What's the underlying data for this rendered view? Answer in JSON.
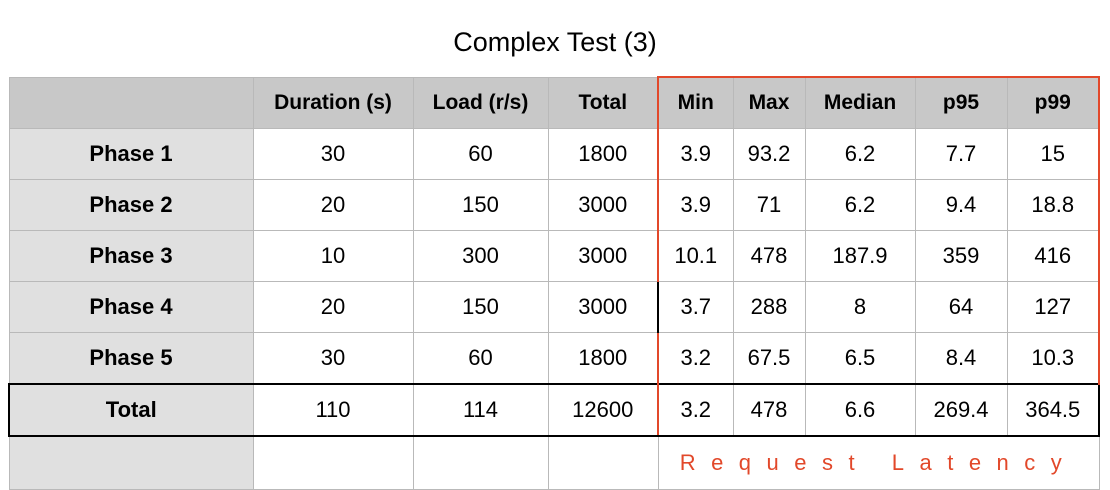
{
  "title": "Complex Test (3)",
  "table": {
    "headers": [
      "",
      "Duration (s)",
      "Load (r/s)",
      "Total",
      "Min",
      "Max",
      "Median",
      "p95",
      "p99"
    ],
    "rows": [
      [
        "Phase 1",
        "30",
        "60",
        "1800",
        "3.9",
        "93.2",
        "6.2",
        "7.7",
        "15"
      ],
      [
        "Phase 2",
        "20",
        "150",
        "3000",
        "3.9",
        "71",
        "6.2",
        "9.4",
        "18.8"
      ],
      [
        "Phase 3",
        "10",
        "300",
        "3000",
        "10.1",
        "478",
        "187.9",
        "359",
        "416"
      ],
      [
        "Phase 4",
        "20",
        "150",
        "3000",
        "3.7",
        "288",
        "8",
        "64",
        "127"
      ],
      [
        "Phase 5",
        "30",
        "60",
        "1800",
        "3.2",
        "67.5",
        "6.5",
        "8.4",
        "10.3"
      ]
    ],
    "total": [
      "Total",
      "110",
      "114",
      "12600",
      "3.2",
      "478",
      "6.6",
      "269.4",
      "364.5"
    ],
    "latency_label": "Request Latency"
  }
}
